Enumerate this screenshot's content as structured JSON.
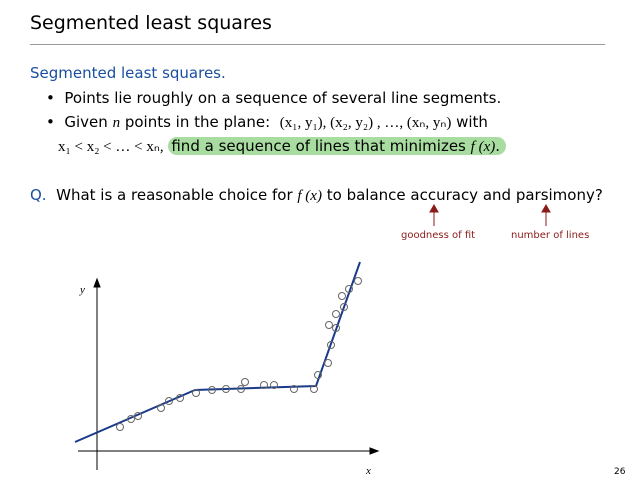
{
  "header": {
    "title": "Segmented least squares"
  },
  "section": {
    "heading": "Segmented least squares."
  },
  "bullets": [
    {
      "text": "Points lie roughly on a sequence of several line segments."
    },
    {
      "lead": "Given ",
      "var": "n",
      "mid": " points in the plane:",
      "math": "(x₁, y₁), (x₂, y₂) , …, (xₙ, yₙ)",
      "tail": " with"
    }
  ],
  "continuation": {
    "math": "x₁ < x₂ < … < xₙ,",
    "highlight": "find a sequence of lines that minimizes ",
    "fx": "f (x)",
    "end": "."
  },
  "question": {
    "label": "Q.",
    "lead": "What is a reasonable choice for ",
    "fx": "f (x)",
    "tail": " to balance accuracy and parsimony?"
  },
  "annotations": [
    "goodness of fit",
    "number of lines"
  ],
  "diagram": {
    "y_axis": "y",
    "x_axis": "x"
  },
  "footer": {
    "page": "26"
  }
}
